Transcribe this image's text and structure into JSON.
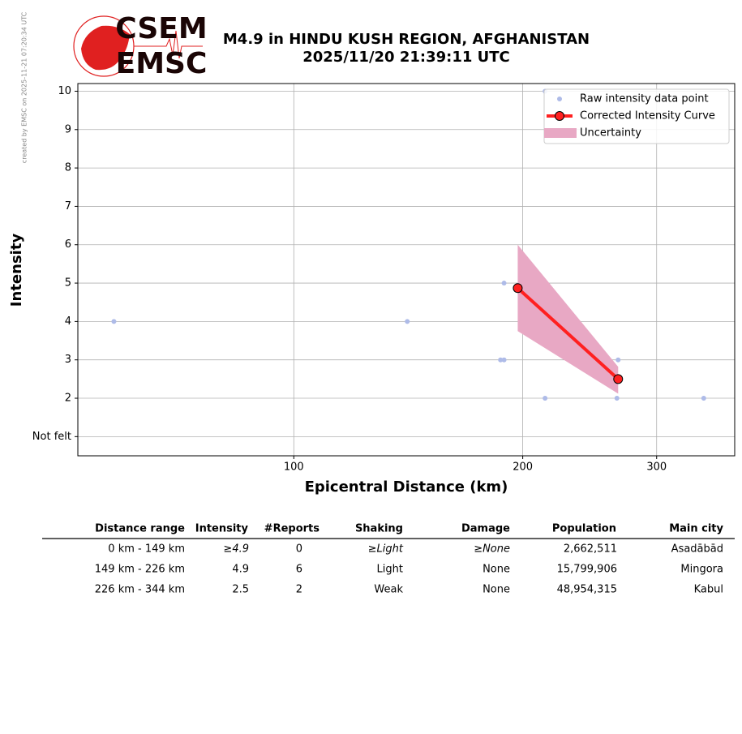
{
  "logo": {
    "top": "CSEM",
    "bottom": "EMSC"
  },
  "credit": "created by EMSC on 2025-11-21 07:20:34 UTC",
  "chart_data": {
    "type": "scatter",
    "title": "M4.9 in HINDU KUSH REGION, AFGHANISTAN",
    "subtitle": "2025/11/20 21:39:11 UTC",
    "xlabel": "Epicentral Distance (km)",
    "ylabel": "Intensity",
    "xscale": "log",
    "xlim": [
      52,
      380
    ],
    "ylim": [
      0.5,
      10.2
    ],
    "xticks": [
      100,
      200,
      300
    ],
    "yticks": [
      {
        "value": 1,
        "label": "Not felt"
      },
      2,
      3,
      4,
      5,
      6,
      7,
      8,
      9,
      10
    ],
    "grid": true,
    "legend": "upper right",
    "series": [
      {
        "name": "Raw intensity data point",
        "type": "scatter",
        "color": "#aebbe8",
        "x": [
          58,
          141,
          189,
          187,
          189,
          214,
          214,
          266,
          267,
          346
        ],
        "values": [
          4,
          4,
          5,
          3,
          3,
          10,
          2,
          2,
          3,
          2
        ]
      },
      {
        "name": "Corrected Intensity Curve",
        "type": "line",
        "color": "#ff2020",
        "x": [
          197,
          267
        ],
        "values": [
          4.87,
          2.5
        ]
      },
      {
        "name": "Uncertainty",
        "type": "band",
        "color": "#e8a8c4",
        "x": [
          197,
          267
        ],
        "lower": [
          3.75,
          2.12
        ],
        "upper": [
          6.0,
          2.82
        ]
      }
    ]
  },
  "table": {
    "columns": [
      "Distance range",
      "Intensity",
      "#Reports",
      "Shaking",
      "Damage",
      "Population",
      "Main city"
    ],
    "rows": [
      [
        "0 km -  149 km",
        "≥4.9",
        "0",
        "≥Light",
        "≥None",
        "2,662,511",
        "Asadābād"
      ],
      [
        "149 km -  226 km",
        "4.9",
        "6",
        "Light",
        "None",
        "15,799,906",
        "Mingora"
      ],
      [
        "226 km -  344 km",
        "2.5",
        "2",
        "Weak",
        "None",
        "48,954,315",
        "Kabul"
      ]
    ]
  }
}
